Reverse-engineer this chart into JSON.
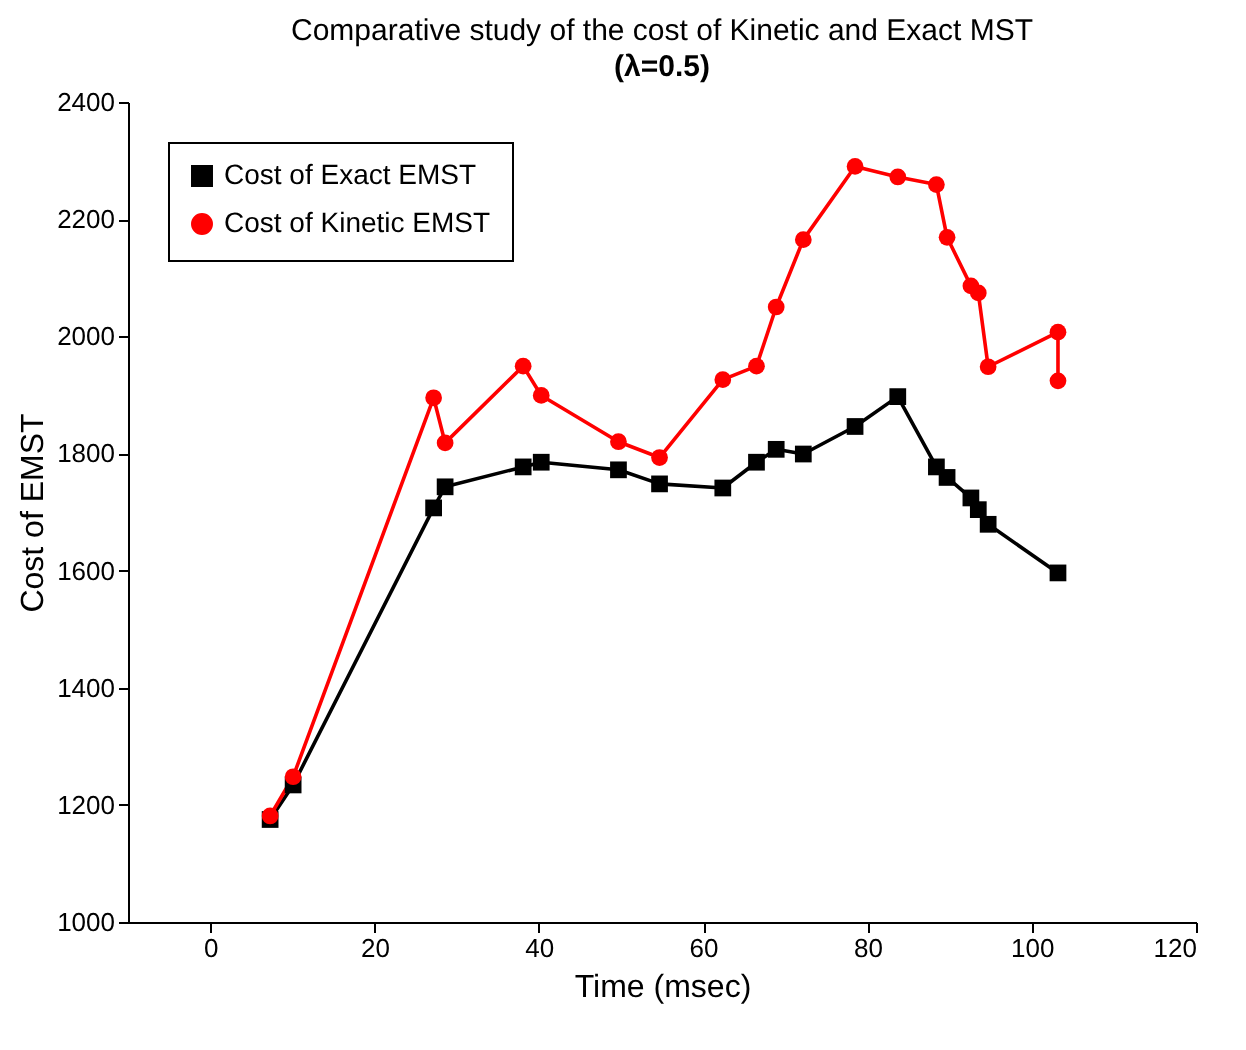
{
  "chart_data": {
    "type": "line",
    "title": "Comparative study of the cost of Kinetic and Exact MST",
    "subtitle": "(λ=0.5)",
    "xlabel": "Time (msec)",
    "ylabel": "Cost of EMST",
    "series": [
      {
        "name": "Cost of Exact EMST",
        "color": "#000000",
        "marker": "square",
        "x": [
          7.3,
          10.1,
          27.2,
          28.6,
          38.1,
          40.3,
          49.7,
          54.7,
          62.4,
          66.5,
          68.9,
          72.2,
          78.5,
          83.7,
          88.4,
          89.7,
          92.6,
          93.5,
          94.7,
          103.2
        ],
        "values": [
          1175,
          1234,
          1707,
          1743,
          1777,
          1785,
          1772,
          1748,
          1741,
          1785,
          1807,
          1799,
          1846,
          1897,
          1777,
          1759,
          1724,
          1704,
          1679,
          1596
        ]
      },
      {
        "name": "Cost of Kinetic EMST",
        "color": "#ff0000",
        "marker": "circle",
        "x": [
          7.3,
          10.1,
          27.2,
          28.6,
          38.1,
          40.3,
          49.7,
          54.7,
          62.4,
          66.5,
          68.9,
          72.2,
          78.5,
          83.7,
          88.4,
          89.7,
          92.6,
          93.5,
          94.7,
          103.2,
          103.2
        ],
        "values": [
          1181,
          1248,
          1895,
          1818,
          1949,
          1899,
          1820,
          1793,
          1926,
          1949,
          2050,
          2165,
          2290,
          2272,
          2259,
          2169,
          2086,
          2074,
          1948,
          2007,
          1924
        ]
      }
    ],
    "xlim": [
      -10,
      120
    ],
    "xticks": [
      0,
      20,
      40,
      60,
      80,
      100,
      120
    ],
    "ylim": [
      1000,
      2400
    ],
    "yticks": [
      1000,
      1200,
      1400,
      1600,
      1800,
      2000,
      2200,
      2400
    ],
    "grid": false,
    "legend": "top left",
    "line_style": "solid"
  }
}
